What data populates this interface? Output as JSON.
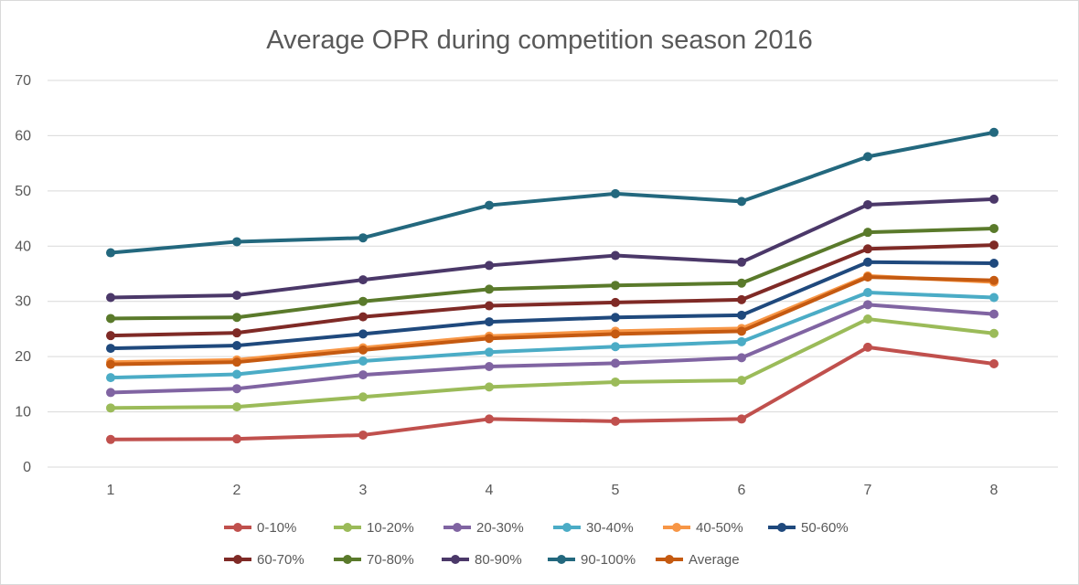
{
  "chart_data": {
    "type": "line",
    "title": "Average OPR during competition season 2016",
    "xlabel": "",
    "ylabel": "",
    "x": [
      1,
      2,
      3,
      4,
      5,
      6,
      7,
      8
    ],
    "x_tick_labels": [
      "1",
      "2",
      "3",
      "4",
      "5",
      "6",
      "7",
      "8"
    ],
    "ylim": [
      0,
      70
    ],
    "y_ticks": [
      0,
      10,
      20,
      30,
      40,
      50,
      60,
      70
    ],
    "y_tick_labels": [
      "0",
      "10",
      "20",
      "30",
      "40",
      "50",
      "60",
      "70"
    ],
    "grid": true,
    "legend_position": "bottom",
    "series": [
      {
        "name": "0-10%",
        "color": "#c0504d",
        "values": [
          5.0,
          5.1,
          5.8,
          8.7,
          8.3,
          8.7,
          21.7,
          18.7
        ]
      },
      {
        "name": "10-20%",
        "color": "#9bbb59",
        "values": [
          10.7,
          10.9,
          12.7,
          14.5,
          15.4,
          15.7,
          26.8,
          24.2
        ]
      },
      {
        "name": "20-30%",
        "color": "#8064a2",
        "values": [
          13.5,
          14.2,
          16.7,
          18.2,
          18.8,
          19.8,
          29.4,
          27.7
        ]
      },
      {
        "name": "30-40%",
        "color": "#4bacc6",
        "values": [
          16.2,
          16.8,
          19.2,
          20.8,
          21.8,
          22.7,
          31.6,
          30.7
        ]
      },
      {
        "name": "40-50%",
        "color": "#f79646",
        "values": [
          19.0,
          19.4,
          21.6,
          23.7,
          24.6,
          25.1,
          34.6,
          33.5
        ]
      },
      {
        "name": "50-60%",
        "color": "#1f497d",
        "values": [
          21.5,
          22.0,
          24.1,
          26.3,
          27.1,
          27.5,
          37.1,
          36.9
        ]
      },
      {
        "name": "60-70%",
        "color": "#7f2a26",
        "values": [
          23.8,
          24.3,
          27.2,
          29.2,
          29.8,
          30.3,
          39.5,
          40.2
        ]
      },
      {
        "name": "70-80%",
        "color": "#5a7a2b",
        "values": [
          26.9,
          27.1,
          30.0,
          32.2,
          32.9,
          33.3,
          42.5,
          43.2
        ]
      },
      {
        "name": "80-90%",
        "color": "#4b3869",
        "values": [
          30.7,
          31.1,
          33.9,
          36.5,
          38.3,
          37.1,
          47.5,
          48.5
        ]
      },
      {
        "name": "90-100%",
        "color": "#23687e",
        "values": [
          38.8,
          40.8,
          41.5,
          47.4,
          49.5,
          48.1,
          56.2,
          60.6
        ]
      },
      {
        "name": "Average",
        "color": "#c55a11",
        "values": [
          18.6,
          19.0,
          21.2,
          23.3,
          24.1,
          24.6,
          34.4,
          33.8
        ]
      }
    ]
  }
}
